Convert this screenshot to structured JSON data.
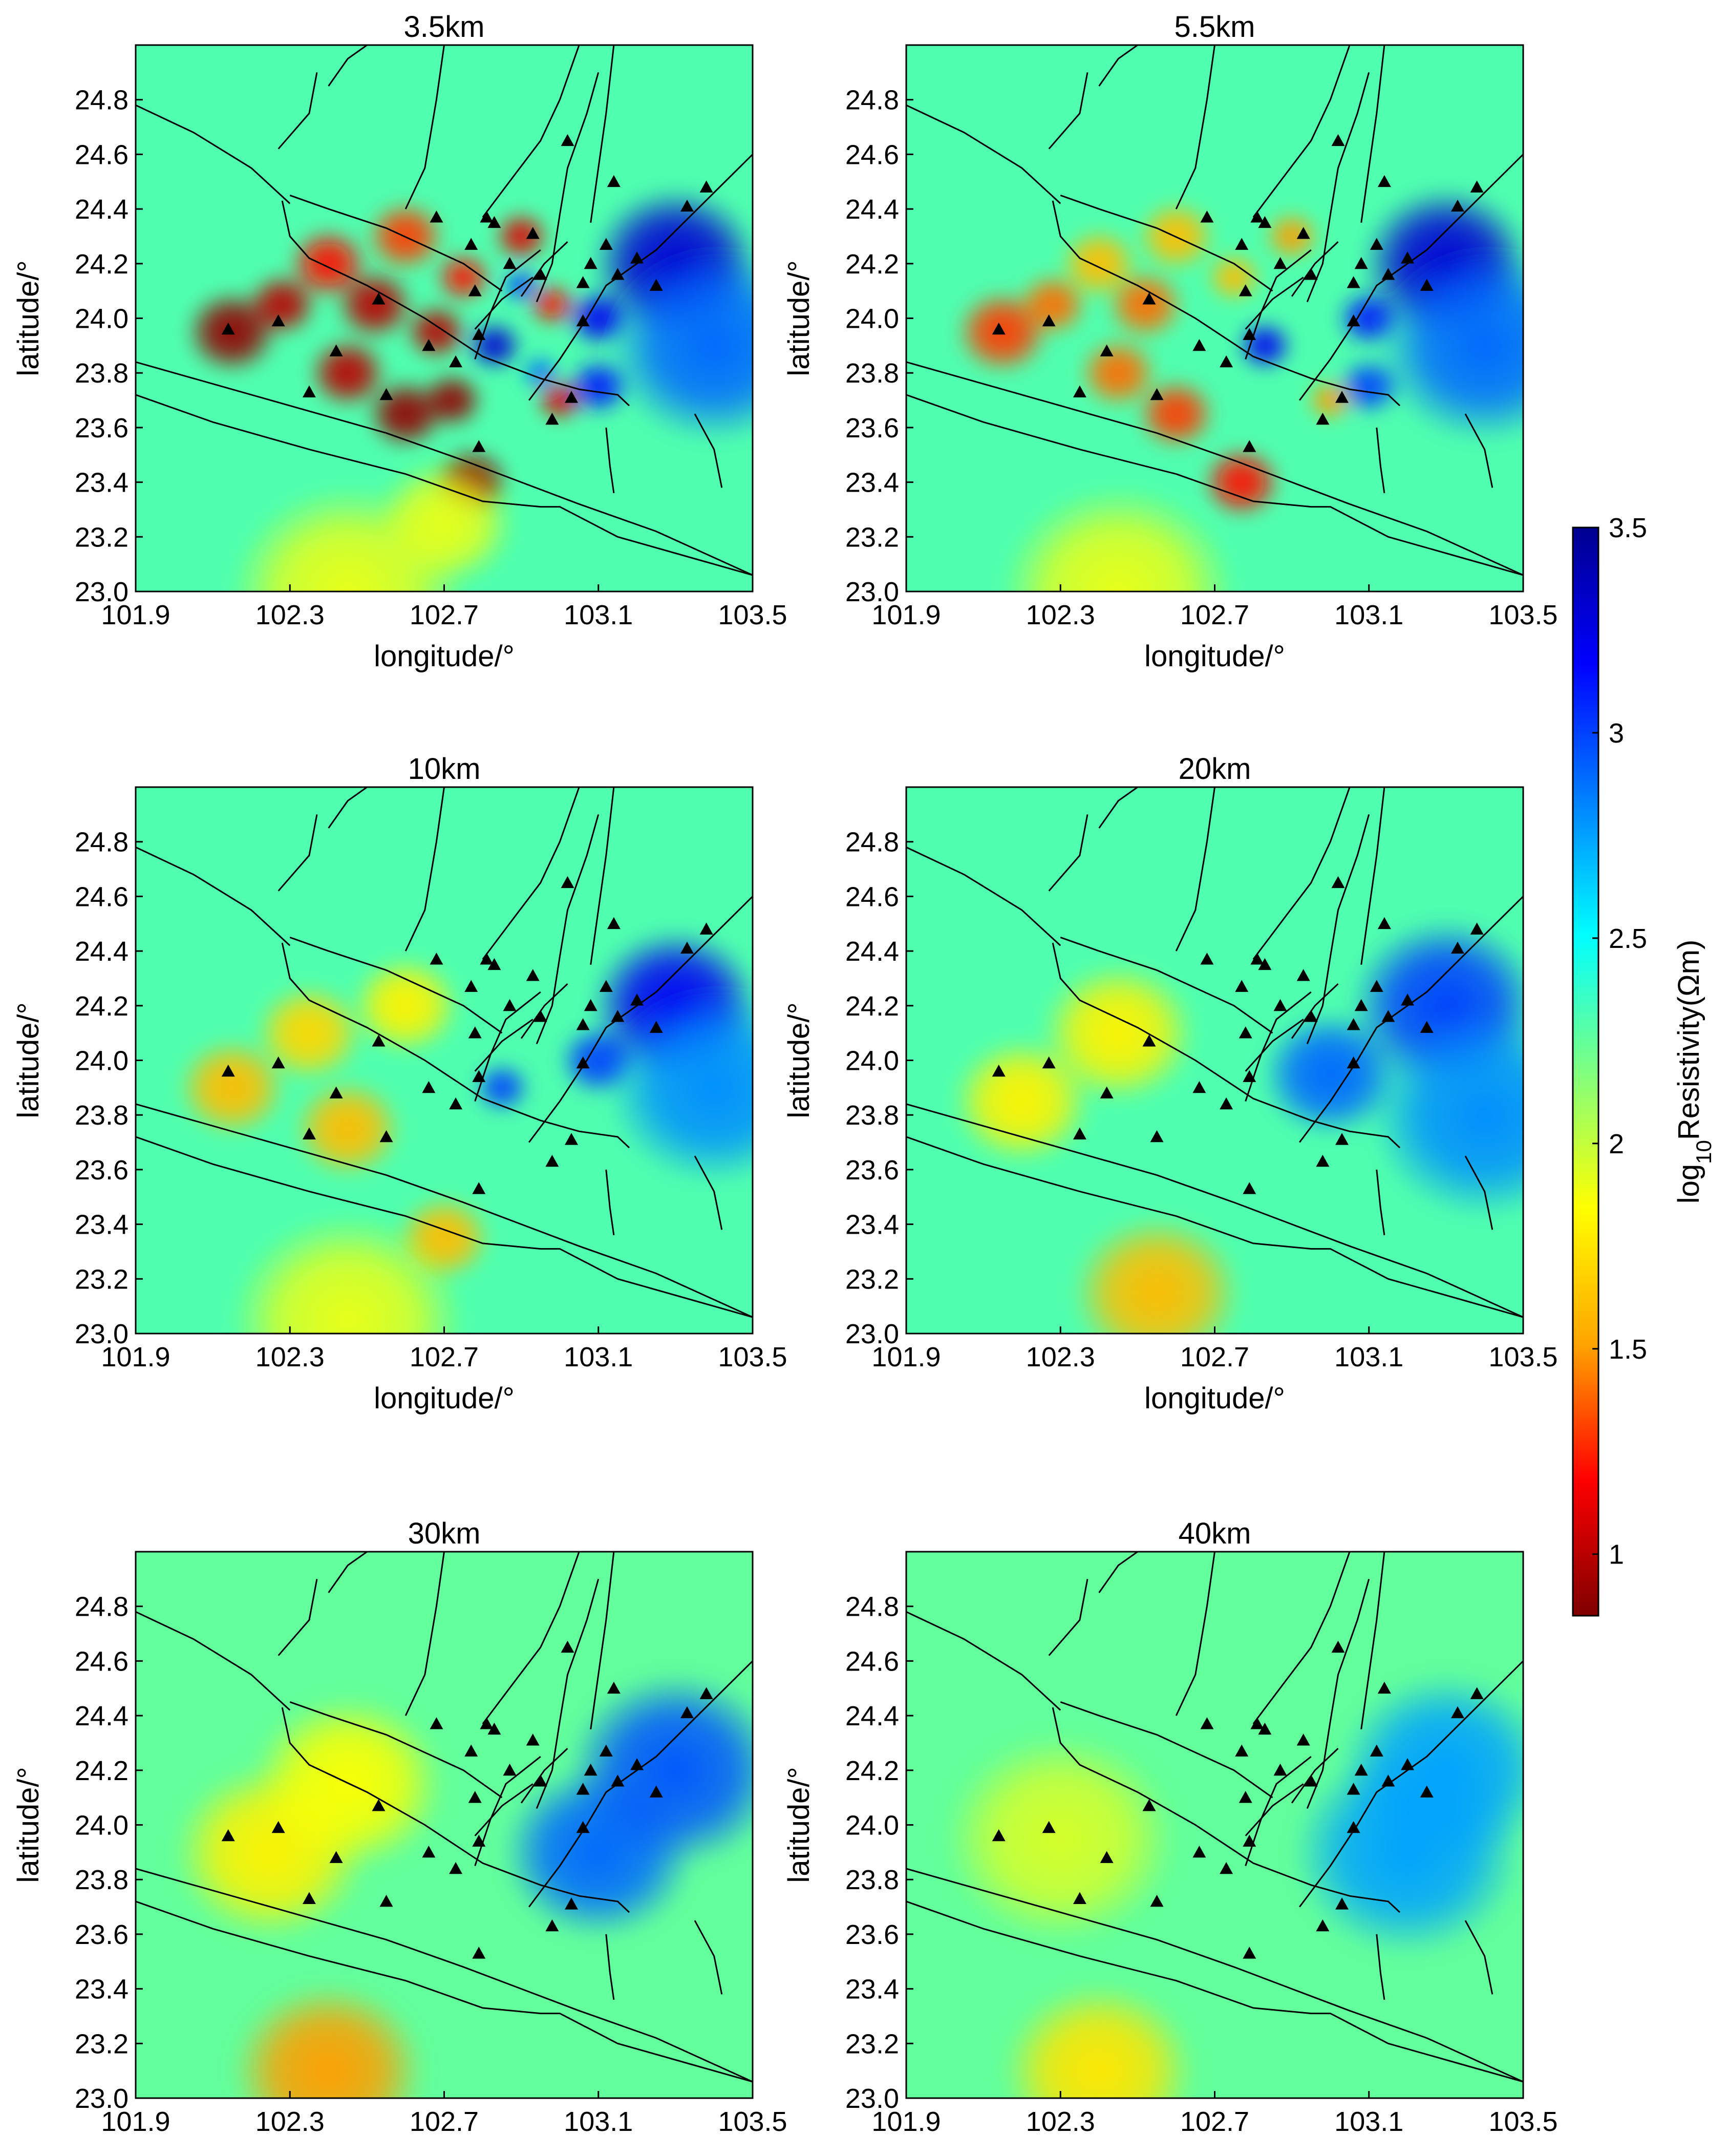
{
  "figure": {
    "colorbar": {
      "label_base": "log",
      "label_sub": "10",
      "label_rest": "Resistivity(Ωm)",
      "range": [
        0.85,
        3.5
      ],
      "ticks": [
        {
          "value": 3.5,
          "label": "3.5"
        },
        {
          "value": 3.0,
          "label": "3"
        },
        {
          "value": 2.5,
          "label": "2.5"
        },
        {
          "value": 2.0,
          "label": "2"
        },
        {
          "value": 1.5,
          "label": "1.5"
        },
        {
          "value": 1.0,
          "label": "1"
        }
      ],
      "colors": [
        "#7f0000",
        "#ff0000",
        "#ffa500",
        "#ffff00",
        "#7fff7f",
        "#00ffff",
        "#0080ff",
        "#0000ff",
        "#00008f"
      ]
    },
    "marker_color": "#000000",
    "fault_color": "#000000"
  },
  "chart_data": [
    {
      "type": "heatmap",
      "title": "3.5km",
      "xlabel": "longitude/°",
      "ylabel": "latitude/°",
      "xlim": [
        101.9,
        103.5
      ],
      "ylim": [
        23.0,
        25.0
      ],
      "xticks": [
        "101.9",
        "102.3",
        "102.7",
        "103.1",
        "103.5"
      ],
      "yticks": [
        "23.0",
        "23.2",
        "23.4",
        "23.6",
        "23.8",
        "24.0",
        "24.2",
        "24.4",
        "24.6",
        "24.8"
      ],
      "background_value": 2.3,
      "anomalies": [
        {
          "lon": 102.15,
          "lat": 23.95,
          "value": 0.9,
          "r": 0.12
        },
        {
          "lon": 102.28,
          "lat": 24.05,
          "value": 1.0,
          "r": 0.09
        },
        {
          "lon": 102.4,
          "lat": 24.2,
          "value": 1.2,
          "r": 0.1
        },
        {
          "lon": 102.52,
          "lat": 24.05,
          "value": 1.0,
          "r": 0.1
        },
        {
          "lon": 102.6,
          "lat": 24.3,
          "value": 1.3,
          "r": 0.1
        },
        {
          "lon": 102.45,
          "lat": 23.8,
          "value": 1.0,
          "r": 0.1
        },
        {
          "lon": 102.6,
          "lat": 23.65,
          "value": 0.9,
          "r": 0.1
        },
        {
          "lon": 102.68,
          "lat": 23.95,
          "value": 1.0,
          "r": 0.08
        },
        {
          "lon": 102.75,
          "lat": 24.15,
          "value": 1.2,
          "r": 0.07
        },
        {
          "lon": 102.72,
          "lat": 23.7,
          "value": 0.9,
          "r": 0.08
        },
        {
          "lon": 102.77,
          "lat": 23.4,
          "value": 0.9,
          "r": 0.1
        },
        {
          "lon": 102.9,
          "lat": 24.3,
          "value": 1.1,
          "r": 0.07
        },
        {
          "lon": 102.98,
          "lat": 24.05,
          "value": 1.2,
          "r": 0.06
        },
        {
          "lon": 103.0,
          "lat": 23.7,
          "value": 1.1,
          "r": 0.06
        },
        {
          "lon": 102.83,
          "lat": 23.9,
          "value": 3.3,
          "r": 0.07
        },
        {
          "lon": 102.9,
          "lat": 24.12,
          "value": 3.0,
          "r": 0.05
        },
        {
          "lon": 102.95,
          "lat": 23.8,
          "value": 2.9,
          "r": 0.05
        },
        {
          "lon": 103.1,
          "lat": 24.0,
          "value": 3.2,
          "r": 0.08
        },
        {
          "lon": 103.1,
          "lat": 23.75,
          "value": 3.1,
          "r": 0.08
        },
        {
          "lon": 103.3,
          "lat": 24.2,
          "value": 3.3,
          "r": 0.22
        },
        {
          "lon": 103.4,
          "lat": 23.9,
          "value": 2.9,
          "r": 0.28
        },
        {
          "lon": 102.45,
          "lat": 23.0,
          "value": 1.9,
          "r": 0.3
        },
        {
          "lon": 102.7,
          "lat": 23.25,
          "value": 1.9,
          "r": 0.18
        }
      ]
    },
    {
      "type": "heatmap",
      "title": "5.5km",
      "xlabel": "longitude/°",
      "ylabel": "latitude/°",
      "xlim": [
        101.9,
        103.5
      ],
      "ylim": [
        23.0,
        25.0
      ],
      "xticks": [
        "101.9",
        "102.3",
        "102.7",
        "103.1",
        "103.5"
      ],
      "yticks": [
        "23.0",
        "23.2",
        "23.4",
        "23.6",
        "23.8",
        "24.0",
        "24.2",
        "24.4",
        "24.6",
        "24.8"
      ],
      "background_value": 2.3,
      "anomalies": [
        {
          "lon": 102.15,
          "lat": 23.95,
          "value": 1.3,
          "r": 0.12
        },
        {
          "lon": 102.28,
          "lat": 24.05,
          "value": 1.4,
          "r": 0.09
        },
        {
          "lon": 102.4,
          "lat": 24.2,
          "value": 1.6,
          "r": 0.1
        },
        {
          "lon": 102.52,
          "lat": 24.05,
          "value": 1.4,
          "r": 0.1
        },
        {
          "lon": 102.6,
          "lat": 24.3,
          "value": 1.6,
          "r": 0.1
        },
        {
          "lon": 102.45,
          "lat": 23.8,
          "value": 1.4,
          "r": 0.1
        },
        {
          "lon": 102.6,
          "lat": 23.65,
          "value": 1.3,
          "r": 0.1
        },
        {
          "lon": 102.75,
          "lat": 24.15,
          "value": 1.6,
          "r": 0.07
        },
        {
          "lon": 102.77,
          "lat": 23.4,
          "value": 1.2,
          "r": 0.1
        },
        {
          "lon": 102.9,
          "lat": 24.3,
          "value": 1.5,
          "r": 0.07
        },
        {
          "lon": 103.0,
          "lat": 23.7,
          "value": 1.5,
          "r": 0.06
        },
        {
          "lon": 102.83,
          "lat": 23.9,
          "value": 3.2,
          "r": 0.07
        },
        {
          "lon": 103.1,
          "lat": 24.0,
          "value": 3.1,
          "r": 0.08
        },
        {
          "lon": 103.1,
          "lat": 23.75,
          "value": 3.0,
          "r": 0.08
        },
        {
          "lon": 103.3,
          "lat": 24.2,
          "value": 3.3,
          "r": 0.22
        },
        {
          "lon": 103.4,
          "lat": 23.9,
          "value": 2.9,
          "r": 0.28
        },
        {
          "lon": 102.45,
          "lat": 23.0,
          "value": 1.9,
          "r": 0.3
        }
      ]
    },
    {
      "type": "heatmap",
      "title": "10km",
      "xlabel": "longitude/°",
      "ylabel": "latitude/°",
      "xlim": [
        101.9,
        103.5
      ],
      "ylim": [
        23.0,
        25.0
      ],
      "xticks": [
        "101.9",
        "102.3",
        "102.7",
        "103.1",
        "103.5"
      ],
      "yticks": [
        "23.0",
        "23.2",
        "23.4",
        "23.6",
        "23.8",
        "24.0",
        "24.2",
        "24.4",
        "24.6",
        "24.8"
      ],
      "background_value": 2.3,
      "anomalies": [
        {
          "lon": 102.15,
          "lat": 23.9,
          "value": 1.6,
          "r": 0.14
        },
        {
          "lon": 102.35,
          "lat": 24.1,
          "value": 1.7,
          "r": 0.14
        },
        {
          "lon": 102.45,
          "lat": 23.75,
          "value": 1.6,
          "r": 0.14
        },
        {
          "lon": 102.6,
          "lat": 24.2,
          "value": 1.8,
          "r": 0.14
        },
        {
          "lon": 102.7,
          "lat": 23.35,
          "value": 1.6,
          "r": 0.12
        },
        {
          "lon": 102.85,
          "lat": 23.9,
          "value": 3.0,
          "r": 0.07
        },
        {
          "lon": 103.1,
          "lat": 24.0,
          "value": 3.0,
          "r": 0.1
        },
        {
          "lon": 103.3,
          "lat": 24.2,
          "value": 3.2,
          "r": 0.22
        },
        {
          "lon": 103.4,
          "lat": 23.9,
          "value": 2.8,
          "r": 0.28
        },
        {
          "lon": 102.45,
          "lat": 23.05,
          "value": 1.9,
          "r": 0.3
        }
      ]
    },
    {
      "type": "heatmap",
      "title": "20km",
      "xlabel": "longitude/°",
      "ylabel": "latitude/°",
      "xlim": [
        101.9,
        103.5
      ],
      "ylim": [
        23.0,
        25.0
      ],
      "xticks": [
        "101.9",
        "102.3",
        "102.7",
        "103.1",
        "103.5"
      ],
      "yticks": [
        "23.0",
        "23.2",
        "23.4",
        "23.6",
        "23.8",
        "24.0",
        "24.2",
        "24.4",
        "24.6",
        "24.8"
      ],
      "background_value": 2.3,
      "anomalies": [
        {
          "lon": 102.2,
          "lat": 23.85,
          "value": 1.8,
          "r": 0.18
        },
        {
          "lon": 102.45,
          "lat": 24.1,
          "value": 1.8,
          "r": 0.2
        },
        {
          "lon": 102.55,
          "lat": 23.15,
          "value": 1.6,
          "r": 0.22
        },
        {
          "lon": 103.0,
          "lat": 23.95,
          "value": 2.9,
          "r": 0.18
        },
        {
          "lon": 103.3,
          "lat": 24.2,
          "value": 3.0,
          "r": 0.25
        },
        {
          "lon": 103.4,
          "lat": 23.8,
          "value": 2.8,
          "r": 0.3
        }
      ]
    },
    {
      "type": "heatmap",
      "title": "30km",
      "xlabel": "longitude/°",
      "ylabel": "latitude/°",
      "xlim": [
        101.9,
        103.5
      ],
      "ylim": [
        23.0,
        25.0
      ],
      "xticks": [
        "101.9",
        "102.3",
        "102.7",
        "103.1",
        "103.5"
      ],
      "yticks": [
        "23.0",
        "23.2",
        "23.4",
        "23.6",
        "23.8",
        "24.0",
        "24.2",
        "24.4",
        "24.6",
        "24.8"
      ],
      "background_value": 2.25,
      "anomalies": [
        {
          "lon": 102.25,
          "lat": 23.9,
          "value": 1.8,
          "r": 0.25
        },
        {
          "lon": 102.45,
          "lat": 24.15,
          "value": 1.85,
          "r": 0.25
        },
        {
          "lon": 102.4,
          "lat": 23.1,
          "value": 1.5,
          "r": 0.25
        },
        {
          "lon": 103.1,
          "lat": 23.9,
          "value": 2.9,
          "r": 0.25
        },
        {
          "lon": 103.3,
          "lat": 24.2,
          "value": 2.95,
          "r": 0.28
        }
      ]
    },
    {
      "type": "heatmap",
      "title": "40km",
      "xlabel": "longitude/°",
      "ylabel": "latitude/°",
      "xlim": [
        101.9,
        103.5
      ],
      "ylim": [
        23.0,
        25.0
      ],
      "xticks": [
        "101.9",
        "102.3",
        "102.7",
        "103.1",
        "103.5"
      ],
      "yticks": [
        "23.0",
        "23.2",
        "23.4",
        "23.6",
        "23.8",
        "24.0",
        "24.2",
        "24.4",
        "24.6",
        "24.8"
      ],
      "background_value": 2.25,
      "anomalies": [
        {
          "lon": 102.3,
          "lat": 23.95,
          "value": 1.95,
          "r": 0.3
        },
        {
          "lon": 102.4,
          "lat": 23.1,
          "value": 1.75,
          "r": 0.25
        },
        {
          "lon": 103.2,
          "lat": 23.9,
          "value": 2.75,
          "r": 0.3
        },
        {
          "lon": 103.3,
          "lat": 24.2,
          "value": 2.75,
          "r": 0.28
        }
      ]
    }
  ],
  "stations": [
    {
      "lon": 102.14,
      "lat": 23.96
    },
    {
      "lon": 102.27,
      "lat": 23.99
    },
    {
      "lon": 102.35,
      "lat": 23.73
    },
    {
      "lon": 102.42,
      "lat": 23.88
    },
    {
      "lon": 102.53,
      "lat": 24.07
    },
    {
      "lon": 102.55,
      "lat": 23.72
    },
    {
      "lon": 102.66,
      "lat": 23.9
    },
    {
      "lon": 102.68,
      "lat": 24.37
    },
    {
      "lon": 102.73,
      "lat": 23.84
    },
    {
      "lon": 102.77,
      "lat": 24.27
    },
    {
      "lon": 102.78,
      "lat": 24.1
    },
    {
      "lon": 102.79,
      "lat": 23.94
    },
    {
      "lon": 102.79,
      "lat": 23.53
    },
    {
      "lon": 102.81,
      "lat": 24.37
    },
    {
      "lon": 102.83,
      "lat": 24.35
    },
    {
      "lon": 102.87,
      "lat": 24.2
    },
    {
      "lon": 102.93,
      "lat": 24.31
    },
    {
      "lon": 102.95,
      "lat": 24.16
    },
    {
      "lon": 102.98,
      "lat": 23.63
    },
    {
      "lon": 103.02,
      "lat": 24.65
    },
    {
      "lon": 103.03,
      "lat": 23.71
    },
    {
      "lon": 103.06,
      "lat": 23.99
    },
    {
      "lon": 103.08,
      "lat": 24.2
    },
    {
      "lon": 103.12,
      "lat": 24.27
    },
    {
      "lon": 103.14,
      "lat": 24.5
    },
    {
      "lon": 103.06,
      "lat": 24.13
    },
    {
      "lon": 103.15,
      "lat": 24.16
    },
    {
      "lon": 103.2,
      "lat": 24.22
    },
    {
      "lon": 103.25,
      "lat": 24.12
    },
    {
      "lon": 103.33,
      "lat": 24.41
    },
    {
      "lon": 103.38,
      "lat": 24.48
    }
  ],
  "faults": [
    [
      [
        101.9,
        23.84
      ],
      [
        102.05,
        23.78
      ],
      [
        102.3,
        23.68
      ],
      [
        102.55,
        23.58
      ],
      [
        102.75,
        23.48
      ],
      [
        102.9,
        23.4
      ],
      [
        103.05,
        23.32
      ],
      [
        103.25,
        23.22
      ],
      [
        103.5,
        23.06
      ]
    ],
    [
      [
        101.9,
        23.72
      ],
      [
        102.1,
        23.62
      ],
      [
        102.35,
        23.52
      ],
      [
        102.6,
        23.43
      ],
      [
        102.8,
        23.33
      ],
      [
        102.95,
        23.31
      ],
      [
        103.0,
        23.31
      ],
      [
        103.15,
        23.2
      ],
      [
        103.35,
        23.12
      ],
      [
        103.5,
        23.06
      ]
    ],
    [
      [
        101.9,
        24.78
      ],
      [
        102.05,
        24.68
      ],
      [
        102.2,
        24.55
      ],
      [
        102.3,
        24.42
      ]
    ],
    [
      [
        102.28,
        24.43
      ],
      [
        102.3,
        24.3
      ],
      [
        102.35,
        24.22
      ],
      [
        102.5,
        24.12
      ],
      [
        102.65,
        24.0
      ],
      [
        102.8,
        23.86
      ],
      [
        102.95,
        23.78
      ],
      [
        103.05,
        23.74
      ],
      [
        103.15,
        23.72
      ],
      [
        103.18,
        23.68
      ]
    ],
    [
      [
        102.3,
        24.45
      ],
      [
        102.4,
        24.4
      ],
      [
        102.55,
        24.33
      ],
      [
        102.75,
        24.2
      ],
      [
        102.85,
        24.1
      ]
    ],
    [
      [
        102.6,
        24.4
      ],
      [
        102.65,
        24.55
      ],
      [
        102.68,
        24.8
      ],
      [
        102.7,
        25.0
      ]
    ],
    [
      [
        102.8,
        24.37
      ],
      [
        102.88,
        24.52
      ],
      [
        102.95,
        24.65
      ],
      [
        103.0,
        24.8
      ],
      [
        103.05,
        25.0
      ]
    ],
    [
      [
        102.94,
        24.06
      ],
      [
        102.98,
        24.2
      ],
      [
        103.0,
        24.38
      ],
      [
        103.02,
        24.55
      ],
      [
        103.07,
        24.75
      ],
      [
        103.1,
        24.9
      ]
    ],
    [
      [
        103.08,
        24.35
      ],
      [
        103.1,
        24.55
      ],
      [
        103.12,
        24.75
      ],
      [
        103.14,
        25.0
      ]
    ],
    [
      [
        102.92,
        23.7
      ],
      [
        103.0,
        23.85
      ],
      [
        103.07,
        24.0
      ],
      [
        103.12,
        24.12
      ],
      [
        103.25,
        24.25
      ],
      [
        103.5,
        24.6
      ]
    ],
    [
      [
        102.78,
        23.85
      ],
      [
        102.82,
        24.02
      ],
      [
        102.86,
        24.15
      ],
      [
        102.95,
        24.25
      ]
    ],
    [
      [
        102.9,
        24.08
      ],
      [
        102.96,
        24.2
      ],
      [
        103.02,
        24.28
      ]
    ],
    [
      [
        102.78,
        23.96
      ],
      [
        102.85,
        24.07
      ],
      [
        102.93,
        24.15
      ]
    ],
    [
      [
        103.35,
        23.65
      ],
      [
        103.4,
        23.52
      ],
      [
        103.42,
        23.38
      ]
    ],
    [
      [
        103.12,
        23.6
      ],
      [
        103.13,
        23.46
      ],
      [
        103.14,
        23.36
      ]
    ],
    [
      [
        102.27,
        24.62
      ],
      [
        102.35,
        24.75
      ],
      [
        102.37,
        24.9
      ]
    ],
    [
      [
        102.4,
        24.85
      ],
      [
        102.45,
        24.95
      ],
      [
        102.5,
        25.0
      ]
    ]
  ]
}
